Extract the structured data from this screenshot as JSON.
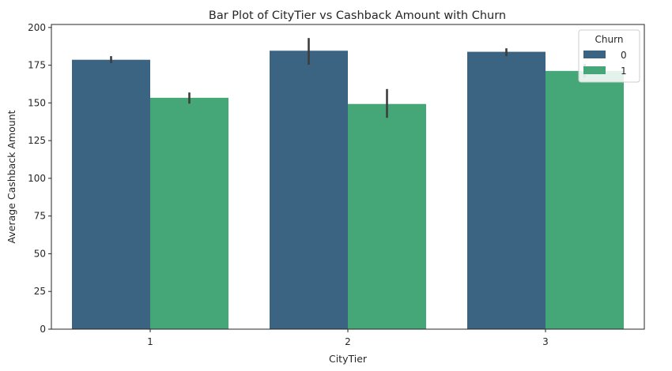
{
  "chart_data": {
    "type": "bar",
    "title": "Bar Plot of CityTier vs Cashback Amount with Churn",
    "xlabel": "CityTier",
    "ylabel": "Average Cashback Amount",
    "categories": [
      "1",
      "2",
      "3"
    ],
    "ylim": [
      0,
      202
    ],
    "yticks": [
      0,
      25,
      50,
      75,
      100,
      125,
      150,
      175,
      200
    ],
    "grid": false,
    "legend": {
      "title": "Churn",
      "placement": "top-right"
    },
    "series": [
      {
        "name": "0",
        "color": "#3b6382",
        "values": [
          178.6,
          184.6,
          183.9
        ],
        "ci_low": [
          176.4,
          175.3,
          181.0
        ],
        "ci_high": [
          181.0,
          193.0,
          186.2
        ]
      },
      {
        "name": "1",
        "color": "#45a778",
        "values": [
          153.4,
          149.3,
          171.2
        ],
        "ci_low": [
          149.5,
          140.1,
          166.8
        ],
        "ci_high": [
          156.9,
          159.2,
          175.8
        ]
      }
    ]
  }
}
